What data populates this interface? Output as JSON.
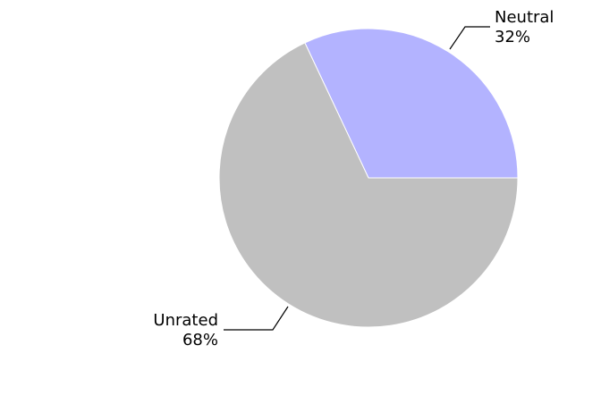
{
  "chart_data": {
    "type": "pie",
    "title": "",
    "slices": [
      {
        "label": "Neutral",
        "value": 32,
        "percent_label": "32%",
        "color": "#b3b3ff"
      },
      {
        "label": "Unrated",
        "value": 68,
        "percent_label": "68%",
        "color": "#c0c0c0"
      }
    ],
    "legend": "none"
  }
}
